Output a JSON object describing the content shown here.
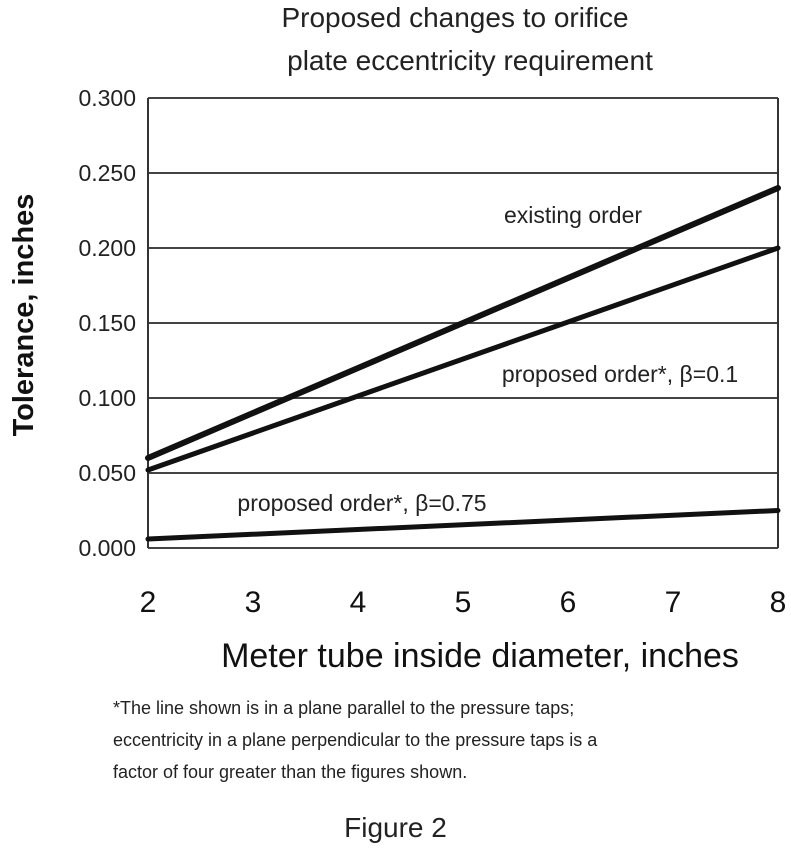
{
  "chart_data": {
    "type": "line",
    "title": [
      "Proposed changes to orifice",
      "plate eccentricity requirement"
    ],
    "xlabel": "Meter tube inside diameter,  inches",
    "ylabel": "Tolerance, inches",
    "xlim": [
      2,
      8
    ],
    "ylim": [
      0,
      0.3
    ],
    "x_ticks": [
      "2",
      "3",
      "4",
      "5",
      "6",
      "7",
      "8"
    ],
    "y_ticks": [
      "0.000",
      "0.050",
      "0.100",
      "0.150",
      "0.200",
      "0.250",
      "0.300"
    ],
    "grid": "horizontal",
    "series": [
      {
        "name": "existing order",
        "x": [
          2,
          8
        ],
        "values": [
          0.06,
          0.24
        ]
      },
      {
        "name": "proposed order*, β=0.1",
        "x": [
          2,
          8
        ],
        "values": [
          0.052,
          0.2
        ]
      },
      {
        "name": "proposed order*, β=0.75",
        "x": [
          2,
          8
        ],
        "values": [
          0.006,
          0.025
        ]
      }
    ]
  },
  "footnote": [
    "*The line shown is in a plane parallel to the pressure taps;",
    "eccentricity in a plane perpendicular to the pressure taps is a",
    "factor of four greater than the figures shown."
  ],
  "caption": "Figure 2"
}
